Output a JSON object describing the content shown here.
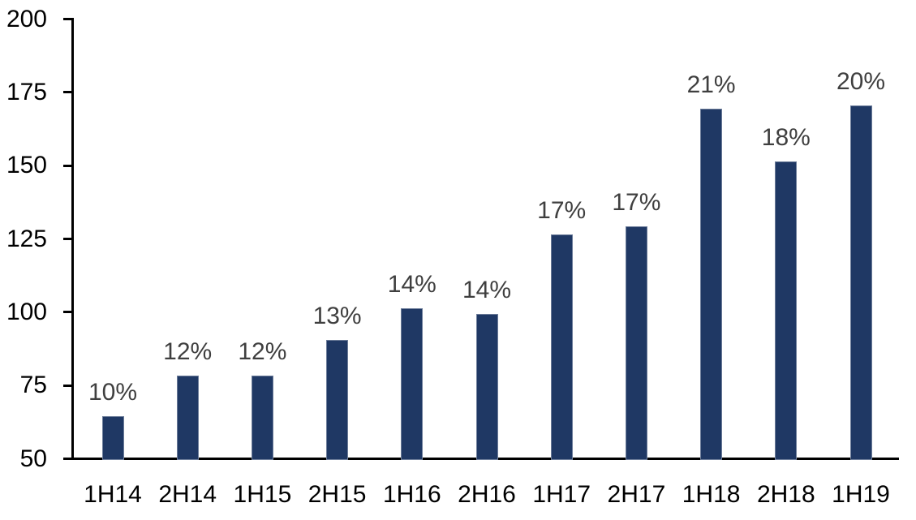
{
  "chart_data": {
    "type": "bar",
    "categories": [
      "1H14",
      "2H14",
      "1H15",
      "2H15",
      "1H16",
      "2H16",
      "1H17",
      "2H17",
      "1H18",
      "2H18",
      "1H19"
    ],
    "values": [
      64,
      78,
      78,
      90,
      101,
      99,
      126,
      129,
      169,
      151,
      170
    ],
    "bar_labels": [
      "10%",
      "12%",
      "12%",
      "13%",
      "14%",
      "14%",
      "17%",
      "17%",
      "21%",
      "18%",
      "20%"
    ],
    "title": "",
    "xlabel": "",
    "ylabel": "",
    "ylim": [
      50,
      200
    ],
    "yticks": [
      50,
      75,
      100,
      125,
      150,
      175,
      200
    ],
    "grid": false,
    "legend": null,
    "colors": {
      "bar": "#1F3864",
      "bar_label": "#3F3F3F",
      "axis": "#000000",
      "background": "#FFFFFF"
    }
  }
}
